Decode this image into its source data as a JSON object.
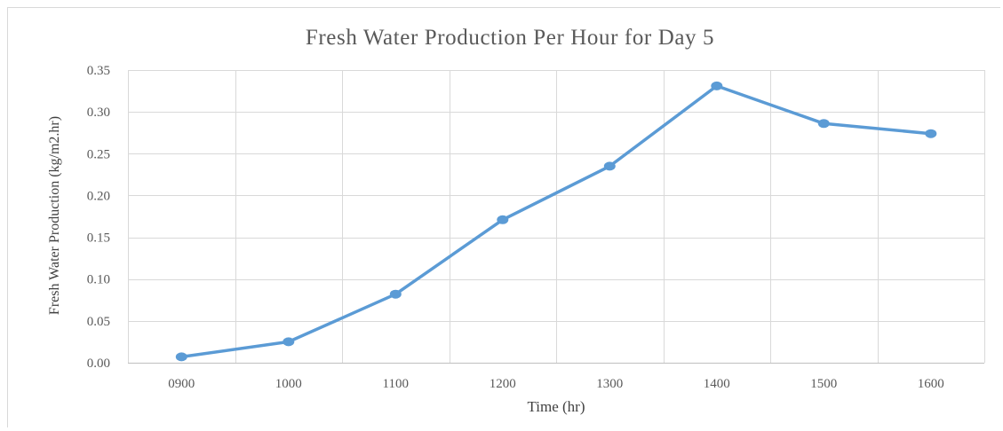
{
  "chart_data": {
    "type": "line",
    "title": "Fresh Water Production  Per Hour for Day  5",
    "xlabel": "Time (hr)",
    "ylabel": "Fresh Water Production (kg/m2.hr)",
    "categories": [
      "0900",
      "1000",
      "1100",
      "1200",
      "1300",
      "1400",
      "1500",
      "1600"
    ],
    "series": [
      {
        "values": [
          0.007,
          0.025,
          0.082,
          0.171,
          0.235,
          0.331,
          0.286,
          0.274
        ],
        "color": "#5b9bd5"
      }
    ],
    "y_ticks": [
      "0.00",
      "0.05",
      "0.10",
      "0.15",
      "0.20",
      "0.25",
      "0.30",
      "0.35"
    ],
    "ylim": [
      0,
      0.35
    ],
    "grid": true,
    "legend": "none"
  }
}
